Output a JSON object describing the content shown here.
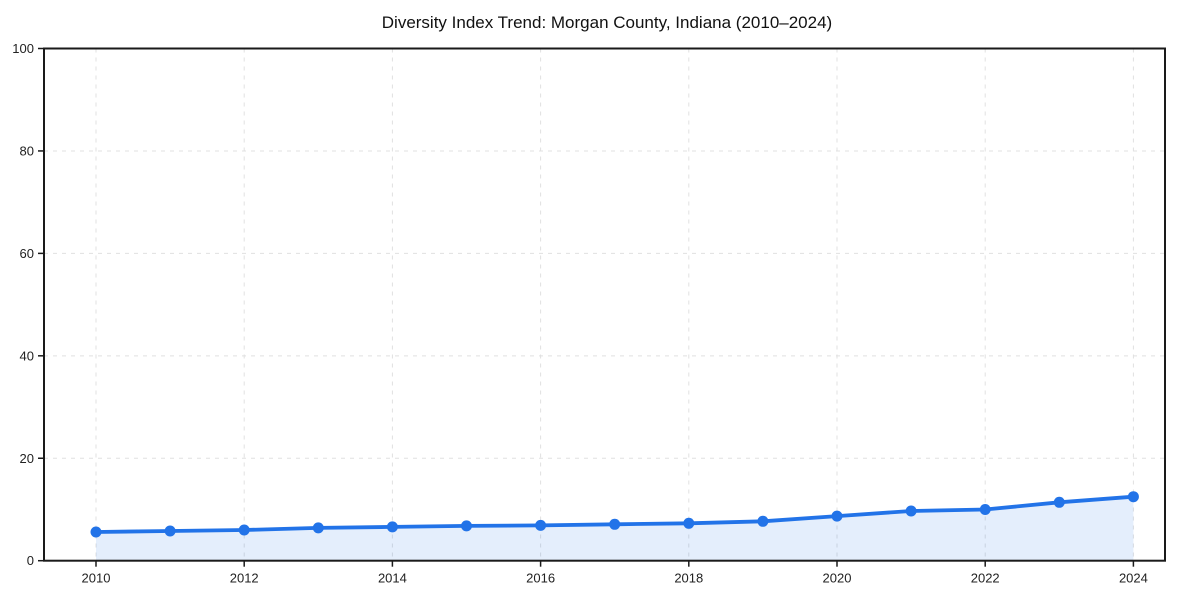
{
  "page": {
    "background_color": "#ffffff"
  },
  "chart_data": {
    "type": "area",
    "title": "Diversity Index Trend: Morgan County, Indiana (2010–2024)",
    "x": [
      2010,
      2011,
      2012,
      2013,
      2014,
      2015,
      2016,
      2017,
      2018,
      2019,
      2020,
      2021,
      2022,
      2023,
      2024
    ],
    "series": [
      {
        "name": "Diversity Index",
        "values": [
          5.6,
          5.8,
          6.0,
          6.4,
          6.6,
          6.8,
          6.9,
          7.1,
          7.3,
          7.7,
          8.7,
          9.7,
          10.0,
          11.4,
          12.5
        ]
      }
    ],
    "xlabel": "",
    "ylabel": "",
    "ylim": [
      0,
      100
    ],
    "yticks": [
      0,
      20,
      40,
      60,
      80,
      100
    ],
    "xticks": [
      2010,
      2012,
      2014,
      2016,
      2018,
      2020,
      2022,
      2024
    ],
    "grid": true,
    "grid_style": "dashed",
    "legend": false,
    "colors": {
      "line": "#2273e8",
      "marker": "#2273e8",
      "area_fill": "#2273e8",
      "area_fill_opacity": 0.12,
      "gridline": "#e0e0e0",
      "axis": "#1a1a1a",
      "tick_text": "#222222",
      "title_text": "#111111"
    }
  }
}
